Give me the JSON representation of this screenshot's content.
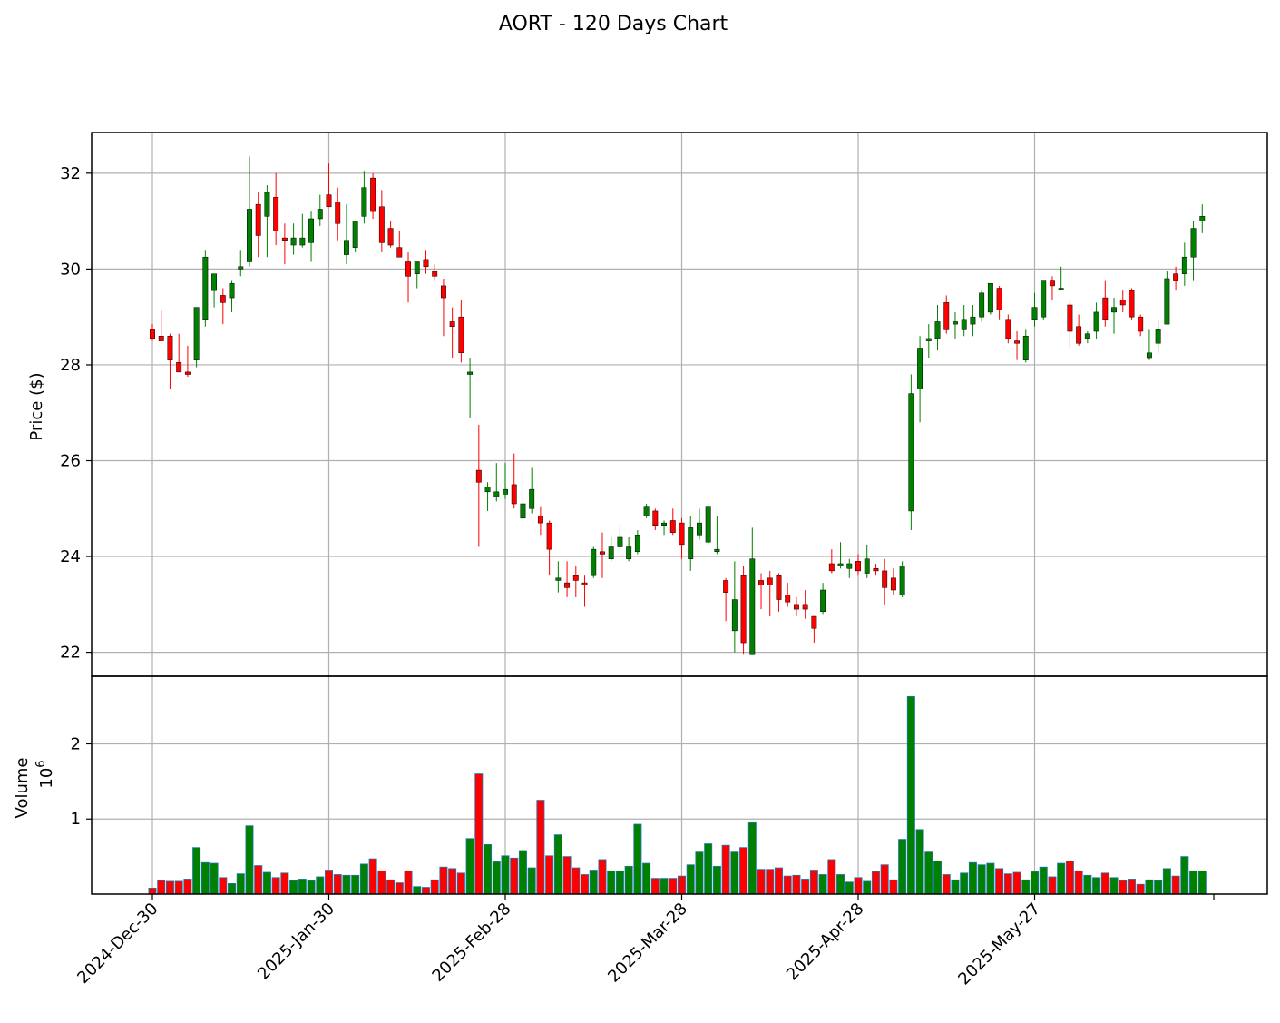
{
  "chart_data": {
    "type": "candlestick",
    "title": "AORT - 120 Days Chart",
    "ylabel_price": "Price ($)",
    "ylabel_volume": "Volume",
    "volume_multiplier_base": "10",
    "volume_multiplier_exp": "6",
    "price_ylim": [
      21.5,
      32.85
    ],
    "price_yticks": [
      22,
      24,
      26,
      28,
      30,
      32
    ],
    "price_ytick_labels": [
      "22",
      "24",
      "26",
      "28",
      "30",
      "32"
    ],
    "volume_ylim": [
      0,
      2.9
    ],
    "volume_yticks": [
      1,
      2
    ],
    "volume_ytick_labels": [
      "1",
      "2"
    ],
    "xtick_indices": [
      0,
      20,
      40,
      60,
      80,
      100
    ],
    "xtick_labels": [
      "2024-Dec-30",
      "2025-Jan-30",
      "2025-Feb-28",
      "2025-Mar-28",
      "2025-Apr-28",
      "2025-May-27"
    ],
    "up_color": "#008000",
    "down_color": "#ff0000",
    "volume_edge_color": "#1f77b4",
    "grid": true,
    "candles": [
      [
        28.75,
        28.85,
        28.5,
        28.55,
        0.08
      ],
      [
        28.6,
        29.15,
        28.5,
        28.5,
        0.18
      ],
      [
        28.6,
        28.65,
        27.5,
        28.1,
        0.17
      ],
      [
        28.05,
        28.65,
        27.85,
        27.85,
        0.17
      ],
      [
        27.85,
        28.4,
        27.75,
        27.8,
        0.2
      ],
      [
        28.1,
        29.2,
        27.95,
        29.2,
        0.62
      ],
      [
        28.95,
        30.4,
        28.8,
        30.25,
        0.42
      ],
      [
        29.55,
        29.9,
        29.2,
        29.9,
        0.41
      ],
      [
        29.45,
        29.6,
        28.85,
        29.3,
        0.22
      ],
      [
        29.4,
        29.75,
        29.1,
        29.7,
        0.14
      ],
      [
        30.0,
        30.4,
        29.85,
        30.05,
        0.27
      ],
      [
        30.15,
        32.35,
        30.05,
        31.25,
        0.91
      ],
      [
        31.35,
        31.6,
        30.25,
        30.7,
        0.38
      ],
      [
        31.1,
        31.75,
        30.25,
        31.6,
        0.29
      ],
      [
        31.5,
        32.0,
        30.5,
        30.8,
        0.22
      ],
      [
        30.65,
        30.95,
        30.1,
        30.6,
        0.28
      ],
      [
        30.5,
        30.95,
        30.3,
        30.65,
        0.18
      ],
      [
        30.5,
        31.15,
        30.45,
        30.65,
        0.2
      ],
      [
        30.55,
        31.2,
        30.15,
        31.05,
        0.18
      ],
      [
        31.05,
        31.55,
        30.9,
        31.25,
        0.23
      ],
      [
        31.55,
        32.2,
        31.3,
        31.3,
        0.32
      ],
      [
        31.4,
        31.7,
        30.6,
        30.95,
        0.26
      ],
      [
        30.3,
        31.35,
        30.1,
        30.6,
        0.25
      ],
      [
        30.45,
        31.0,
        30.35,
        31.0,
        0.25
      ],
      [
        31.1,
        32.05,
        30.95,
        31.7,
        0.4
      ],
      [
        31.9,
        32.0,
        31.05,
        31.2,
        0.47
      ],
      [
        31.3,
        31.65,
        30.35,
        30.55,
        0.31
      ],
      [
        30.85,
        31.0,
        30.45,
        30.5,
        0.19
      ],
      [
        30.45,
        30.8,
        30.25,
        30.25,
        0.15
      ],
      [
        30.15,
        30.35,
        29.3,
        29.85,
        0.31
      ],
      [
        29.9,
        30.15,
        29.6,
        30.15,
        0.1
      ],
      [
        30.2,
        30.4,
        29.9,
        30.05,
        0.09
      ],
      [
        29.95,
        30.1,
        29.75,
        29.85,
        0.19
      ],
      [
        29.65,
        29.8,
        28.6,
        29.4,
        0.36
      ],
      [
        28.9,
        29.2,
        28.15,
        28.8,
        0.34
      ],
      [
        29.0,
        29.35,
        28.05,
        28.25,
        0.28
      ],
      [
        27.8,
        28.15,
        26.9,
        27.85,
        0.74
      ],
      [
        25.8,
        26.75,
        24.2,
        25.55,
        1.6
      ],
      [
        25.35,
        25.55,
        24.95,
        25.45,
        0.66
      ],
      [
        25.25,
        25.95,
        25.15,
        25.35,
        0.43
      ],
      [
        25.3,
        25.95,
        25.2,
        25.4,
        0.51
      ],
      [
        25.5,
        26.15,
        25.0,
        25.1,
        0.48
      ],
      [
        24.8,
        25.75,
        24.7,
        25.1,
        0.58
      ],
      [
        25.0,
        25.85,
        24.9,
        25.4,
        0.35
      ],
      [
        24.85,
        25.05,
        24.45,
        24.7,
        1.25
      ],
      [
        24.7,
        24.75,
        23.6,
        24.15,
        0.51
      ],
      [
        23.5,
        23.9,
        23.25,
        23.55,
        0.79
      ],
      [
        23.45,
        23.9,
        23.15,
        23.35,
        0.5
      ],
      [
        23.6,
        23.8,
        23.15,
        23.5,
        0.35
      ],
      [
        23.45,
        23.6,
        22.95,
        23.4,
        0.26
      ],
      [
        23.6,
        24.2,
        23.55,
        24.15,
        0.32
      ],
      [
        24.1,
        24.5,
        23.55,
        24.05,
        0.46
      ],
      [
        23.95,
        24.4,
        23.9,
        24.2,
        0.31
      ],
      [
        24.2,
        24.65,
        24.15,
        24.4,
        0.31
      ],
      [
        23.95,
        24.4,
        23.9,
        24.2,
        0.37
      ],
      [
        24.1,
        24.55,
        24.05,
        24.45,
        0.93
      ],
      [
        24.85,
        25.1,
        24.8,
        25.05,
        0.41
      ],
      [
        24.95,
        25.0,
        24.55,
        24.65,
        0.21
      ],
      [
        24.65,
        24.75,
        24.45,
        24.7,
        0.21
      ],
      [
        24.75,
        25.0,
        24.45,
        24.5,
        0.21
      ],
      [
        24.7,
        24.8,
        23.95,
        24.25,
        0.24
      ],
      [
        23.95,
        24.85,
        23.7,
        24.6,
        0.39
      ],
      [
        24.45,
        25.0,
        24.35,
        24.7,
        0.56
      ],
      [
        24.3,
        25.05,
        24.25,
        25.05,
        0.67
      ],
      [
        24.1,
        24.85,
        24.05,
        24.15,
        0.37
      ],
      [
        23.5,
        23.55,
        22.65,
        23.25,
        0.65
      ],
      [
        22.45,
        23.9,
        22.0,
        23.1,
        0.56
      ],
      [
        23.6,
        23.8,
        21.95,
        22.2,
        0.62
      ],
      [
        21.95,
        24.6,
        21.95,
        23.95,
        0.95
      ],
      [
        23.5,
        23.65,
        22.9,
        23.4,
        0.33
      ],
      [
        23.55,
        23.7,
        22.75,
        23.4,
        0.33
      ],
      [
        23.6,
        23.65,
        22.85,
        23.1,
        0.35
      ],
      [
        23.2,
        23.45,
        22.95,
        23.05,
        0.24
      ],
      [
        23.0,
        23.15,
        22.75,
        22.9,
        0.25
      ],
      [
        23.0,
        23.3,
        22.7,
        22.9,
        0.2
      ],
      [
        22.75,
        22.75,
        22.2,
        22.5,
        0.32
      ],
      [
        22.85,
        23.45,
        22.8,
        23.3,
        0.26
      ],
      [
        23.85,
        24.15,
        23.65,
        23.7,
        0.46
      ],
      [
        23.8,
        24.3,
        23.75,
        23.85,
        0.26
      ],
      [
        23.75,
        23.95,
        23.55,
        23.85,
        0.16
      ],
      [
        23.9,
        24.05,
        23.6,
        23.7,
        0.22
      ],
      [
        23.65,
        24.25,
        23.55,
        23.95,
        0.17
      ],
      [
        23.75,
        23.85,
        23.6,
        23.7,
        0.3
      ],
      [
        23.7,
        23.95,
        23.0,
        23.35,
        0.39
      ],
      [
        23.55,
        23.75,
        23.2,
        23.3,
        0.19
      ],
      [
        23.2,
        23.9,
        23.15,
        23.8,
        0.73
      ],
      [
        24.95,
        27.8,
        24.55,
        27.4,
        2.63
      ],
      [
        27.5,
        28.6,
        26.8,
        28.35,
        0.86
      ],
      [
        28.5,
        28.85,
        28.15,
        28.55,
        0.56
      ],
      [
        28.55,
        29.25,
        28.3,
        28.9,
        0.44
      ],
      [
        29.3,
        29.45,
        28.65,
        28.75,
        0.26
      ],
      [
        28.85,
        29.1,
        28.55,
        28.9,
        0.19
      ],
      [
        28.75,
        29.25,
        28.6,
        28.95,
        0.28
      ],
      [
        28.85,
        29.25,
        28.6,
        29.0,
        0.42
      ],
      [
        29.0,
        29.55,
        28.9,
        29.5,
        0.39
      ],
      [
        29.1,
        29.7,
        29.05,
        29.7,
        0.41
      ],
      [
        29.6,
        29.65,
        28.95,
        29.15,
        0.34
      ],
      [
        28.95,
        29.05,
        28.45,
        28.55,
        0.27
      ],
      [
        28.5,
        28.7,
        28.1,
        28.45,
        0.29
      ],
      [
        28.1,
        28.75,
        28.05,
        28.6,
        0.19
      ],
      [
        28.95,
        29.5,
        28.8,
        29.2,
        0.3
      ],
      [
        29.0,
        29.75,
        28.95,
        29.75,
        0.36
      ],
      [
        29.75,
        29.85,
        29.35,
        29.65,
        0.23
      ],
      [
        29.6,
        30.05,
        29.55,
        29.6,
        0.41
      ],
      [
        29.25,
        29.35,
        28.35,
        28.7,
        0.44
      ],
      [
        28.8,
        29.05,
        28.4,
        28.45,
        0.31
      ],
      [
        28.55,
        28.7,
        28.45,
        28.65,
        0.25
      ],
      [
        28.7,
        29.3,
        28.55,
        29.1,
        0.22
      ],
      [
        29.4,
        29.75,
        28.8,
        28.95,
        0.28
      ],
      [
        29.1,
        29.4,
        28.65,
        29.2,
        0.22
      ],
      [
        29.35,
        29.55,
        29.1,
        29.25,
        0.18
      ],
      [
        29.55,
        29.6,
        28.95,
        29.0,
        0.2
      ],
      [
        29.0,
        29.05,
        28.6,
        28.7,
        0.13
      ],
      [
        28.15,
        28.75,
        28.1,
        28.25,
        0.19
      ],
      [
        28.45,
        28.95,
        28.25,
        28.75,
        0.18
      ],
      [
        28.85,
        29.95,
        28.85,
        29.8,
        0.34
      ],
      [
        29.9,
        30.05,
        29.55,
        29.75,
        0.24
      ],
      [
        29.9,
        30.55,
        29.65,
        30.25,
        0.5
      ],
      [
        30.25,
        31.0,
        29.75,
        30.85,
        0.31
      ],
      [
        31.0,
        31.35,
        30.75,
        31.1,
        0.31
      ]
    ]
  }
}
